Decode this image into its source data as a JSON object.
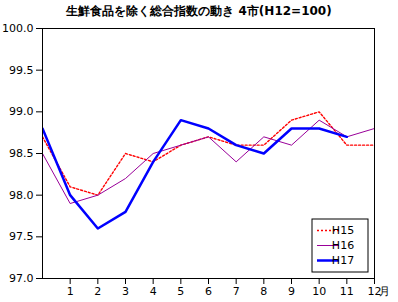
{
  "chart_data": {
    "type": "line",
    "title": "生鮮食品を除く総合指数の動き 4市(H12=100)",
    "x_label": "月",
    "x": [
      0,
      1,
      2,
      3,
      4,
      5,
      6,
      7,
      8,
      9,
      10,
      11,
      12
    ],
    "xlim": [
      0,
      12
    ],
    "xticks": [
      1,
      2,
      3,
      4,
      5,
      6,
      7,
      8,
      9,
      10,
      11,
      12
    ],
    "ylim": [
      97.0,
      100.0
    ],
    "yticks": [
      {
        "value": 97.0,
        "label": "97.0"
      },
      97.5,
      {
        "value": 98.0,
        "label": "98.0"
      },
      98.5,
      {
        "value": 99.0,
        "label": "99.0"
      },
      99.5,
      {
        "value": 100.0,
        "label": "100.0"
      }
    ],
    "grid": false,
    "legend": "bottom-right",
    "series": [
      {
        "name": "H15",
        "color": "#ff0000",
        "line_style": "dotted",
        "values": [
          98.7,
          98.1,
          98.0,
          98.5,
          98.4,
          98.6,
          98.7,
          98.6,
          98.6,
          98.9,
          99.0,
          98.6,
          98.6
        ]
      },
      {
        "name": "H16",
        "color": "#990099",
        "line_style": "solid",
        "values": [
          98.5,
          97.9,
          98.0,
          98.2,
          98.5,
          98.6,
          98.7,
          98.4,
          98.7,
          98.6,
          98.9,
          98.7,
          98.8
        ]
      },
      {
        "name": "H17",
        "color": "#0000ff",
        "line_style": "solid",
        "values": [
          98.8,
          98.0,
          97.6,
          97.8,
          98.4,
          98.9,
          98.8,
          98.6,
          98.5,
          98.8,
          98.8,
          98.7,
          null
        ]
      }
    ]
  }
}
